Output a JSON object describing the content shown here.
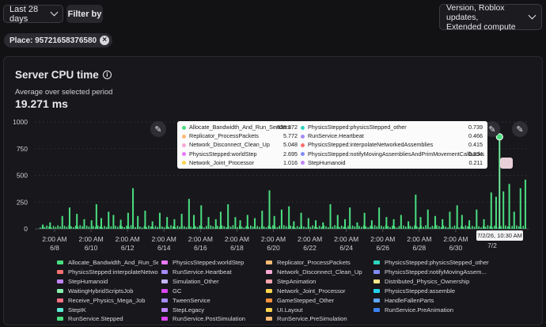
{
  "toolbar": {
    "date_range": "Last 28 days",
    "filter_label": "Filter by",
    "breakdown_line1": "Version, Roblox updates,",
    "breakdown_line2": "Extended compute"
  },
  "filter_chip": {
    "label": "Place: 95721658376580"
  },
  "panel": {
    "title": "Server CPU time",
    "avg_label": "Average over selected period",
    "avg_value": "19.271 ms"
  },
  "colors": {
    "accent": "#4ade80",
    "background": "#121215"
  },
  "icons": [
    "chevron-down-icon",
    "close-icon",
    "info-icon",
    "pencil-icon"
  ],
  "chart_data": {
    "type": "bar",
    "y_ticks": [
      "1000",
      "750",
      "500",
      "250",
      "0"
    ],
    "ylim": [
      0,
      1000
    ],
    "x_ticks": [
      {
        "time": "2:00 AM",
        "date": "6/8"
      },
      {
        "time": "2:00 AM",
        "date": "6/10"
      },
      {
        "time": "2:00 AM",
        "date": "6/12"
      },
      {
        "time": "2:00 AM",
        "date": "6/14"
      },
      {
        "time": "2:00 AM",
        "date": "6/16"
      },
      {
        "time": "2:00 AM",
        "date": "6/18"
      },
      {
        "time": "2:00 AM",
        "date": "6/20"
      },
      {
        "time": "2:00 AM",
        "date": "6/22"
      },
      {
        "time": "2:00 AM",
        "date": "6/24"
      },
      {
        "time": "2:00 AM",
        "date": "6/26"
      },
      {
        "time": "2:00 AM",
        "date": "6/28"
      },
      {
        "time": "2:00 AM",
        "date": "6/30"
      },
      {
        "time": "",
        "date": "7/2"
      }
    ],
    "peaks": [
      {
        "x": 0.005,
        "v": 40
      },
      {
        "x": 0.02,
        "v": 60
      },
      {
        "x": 0.045,
        "v": 120
      },
      {
        "x": 0.06,
        "v": 200
      },
      {
        "x": 0.075,
        "v": 140
      },
      {
        "x": 0.09,
        "v": 90
      },
      {
        "x": 0.105,
        "v": 80
      },
      {
        "x": 0.115,
        "v": 230
      },
      {
        "x": 0.125,
        "v": 100
      },
      {
        "x": 0.14,
        "v": 160
      },
      {
        "x": 0.15,
        "v": 130
      },
      {
        "x": 0.165,
        "v": 85
      },
      {
        "x": 0.18,
        "v": 150
      },
      {
        "x": 0.19,
        "v": 380
      },
      {
        "x": 0.2,
        "v": 120
      },
      {
        "x": 0.215,
        "v": 170
      },
      {
        "x": 0.23,
        "v": 70
      },
      {
        "x": 0.245,
        "v": 150
      },
      {
        "x": 0.26,
        "v": 110
      },
      {
        "x": 0.275,
        "v": 90
      },
      {
        "x": 0.29,
        "v": 140
      },
      {
        "x": 0.305,
        "v": 280
      },
      {
        "x": 0.315,
        "v": 130
      },
      {
        "x": 0.33,
        "v": 220
      },
      {
        "x": 0.345,
        "v": 110
      },
      {
        "x": 0.36,
        "v": 90
      },
      {
        "x": 0.37,
        "v": 160
      },
      {
        "x": 0.385,
        "v": 230
      },
      {
        "x": 0.4,
        "v": 110
      },
      {
        "x": 0.41,
        "v": 80
      },
      {
        "x": 0.425,
        "v": 130
      },
      {
        "x": 0.44,
        "v": 100
      },
      {
        "x": 0.455,
        "v": 170
      },
      {
        "x": 0.47,
        "v": 360
      },
      {
        "x": 0.48,
        "v": 120
      },
      {
        "x": 0.495,
        "v": 180
      },
      {
        "x": 0.51,
        "v": 210
      },
      {
        "x": 0.52,
        "v": 70
      },
      {
        "x": 0.535,
        "v": 150
      },
      {
        "x": 0.55,
        "v": 100
      },
      {
        "x": 0.565,
        "v": 80
      },
      {
        "x": 0.58,
        "v": 60
      },
      {
        "x": 0.595,
        "v": 230
      },
      {
        "x": 0.61,
        "v": 130
      },
      {
        "x": 0.625,
        "v": 90
      },
      {
        "x": 0.635,
        "v": 200
      },
      {
        "x": 0.65,
        "v": 60
      },
      {
        "x": 0.665,
        "v": 150
      },
      {
        "x": 0.68,
        "v": 80
      },
      {
        "x": 0.695,
        "v": 200
      },
      {
        "x": 0.71,
        "v": 110
      },
      {
        "x": 0.725,
        "v": 90
      },
      {
        "x": 0.74,
        "v": 130
      },
      {
        "x": 0.755,
        "v": 70
      },
      {
        "x": 0.77,
        "v": 320
      },
      {
        "x": 0.78,
        "v": 110
      },
      {
        "x": 0.795,
        "v": 180
      },
      {
        "x": 0.81,
        "v": 120
      },
      {
        "x": 0.825,
        "v": 90
      },
      {
        "x": 0.84,
        "v": 160
      },
      {
        "x": 0.855,
        "v": 220
      },
      {
        "x": 0.865,
        "v": 130
      },
      {
        "x": 0.88,
        "v": 80
      },
      {
        "x": 0.895,
        "v": 180
      },
      {
        "x": 0.91,
        "v": 90
      },
      {
        "x": 0.925,
        "v": 340
      },
      {
        "x": 0.935,
        "v": 300
      },
      {
        "x": 0.942,
        "v": 860
      },
      {
        "x": 0.95,
        "v": 350
      },
      {
        "x": 0.962,
        "v": 420
      },
      {
        "x": 0.972,
        "v": 160
      },
      {
        "x": 0.985,
        "v": 380
      },
      {
        "x": 0.995,
        "v": 460
      }
    ],
    "highlight": {
      "x": 0.942,
      "v": 860,
      "label": "7/2/26, 10:30 AM"
    },
    "tooltip": [
      {
        "name": "Allocate_Bandwidth_And_Run_Senders",
        "value": "838.372",
        "color": "#4ade80"
      },
      {
        "name": "PhysicsStepped:physicsStepped_other",
        "value": "0.739",
        "color": "#2dd4bf"
      },
      {
        "name": "Replicator_ProcessPackets",
        "value": "5.772",
        "color": "#fdba74"
      },
      {
        "name": "RunService.Heartbeat",
        "value": "0.466",
        "color": "#a78bfa"
      },
      {
        "name": "Network_Disconnect_Clean_Up",
        "value": "5.048",
        "color": "#f9a8d4"
      },
      {
        "name": "PhysicsStepped:interpolateNetworkedAssemblies",
        "value": "0.415",
        "color": "#f87171"
      },
      {
        "name": "PhysicsStepped:worldStep",
        "value": "2.695",
        "color": "#e879f9"
      },
      {
        "name": "PhysicsStepped:notifyMovingAssembliesAndPrimMovementCallbacks",
        "value": "0.234",
        "color": "#818cf8"
      },
      {
        "name": "Network_Joint_Processor",
        "value": "1.016",
        "color": "#fcd34d"
      },
      {
        "name": "StepHumanoid",
        "value": "0.211",
        "color": "#c084fc"
      }
    ],
    "legend": [
      {
        "name": "Allocate_Bandwidth_And_Run_Senders",
        "color": "#4ade80"
      },
      {
        "name": "PhysicsStepped:worldStep",
        "color": "#e879f9"
      },
      {
        "name": "Replicator_ProcessPackets",
        "color": "#fdba74"
      },
      {
        "name": "PhysicsStepped:physicsStepped_other",
        "color": "#2dd4bf"
      },
      {
        "name": "PhysicsStepped:interpolateNetworke...",
        "color": "#f87171"
      },
      {
        "name": "RunService.Heartbeat",
        "color": "#a78bfa"
      },
      {
        "name": "Network_Disconnect_Clean_Up",
        "color": "#f9a8d4"
      },
      {
        "name": "PhysicsStepped:notifyMovingAssem...",
        "color": "#818cf8"
      },
      {
        "name": "StepHumanoid",
        "color": "#c084fc"
      },
      {
        "name": "Simulation_Other",
        "color": "#c4b5fd"
      },
      {
        "name": "StepAnimation",
        "color": "#fda4af"
      },
      {
        "name": "Distributed_Physics_Ownership",
        "color": "#fde68a"
      },
      {
        "name": "WaitingHybridScriptsJob",
        "color": "#86efac"
      },
      {
        "name": "GC",
        "color": "#d946ef"
      },
      {
        "name": "Network_Joint_Processor",
        "color": "#fcd34d"
      },
      {
        "name": "PhysicsStepped:assemble",
        "color": "#22d3ee"
      },
      {
        "name": "Receive_Physics_Mega_Job",
        "color": "#fb7185"
      },
      {
        "name": "TweenService",
        "color": "#a78bfa"
      },
      {
        "name": "GameStepped_Other",
        "color": "#fb923c"
      },
      {
        "name": "HandleFallenParts",
        "color": "#60a5fa"
      },
      {
        "name": "StepIK",
        "color": "#5eead4"
      },
      {
        "name": "StepLegacy",
        "color": "#c084fc"
      },
      {
        "name": "UI.Layout",
        "color": "#fcd34d"
      },
      {
        "name": "RunService.PreAnimation",
        "color": "#3b82f6"
      },
      {
        "name": "RunService.Stepped",
        "color": "#4ade80"
      },
      {
        "name": "RunService.PostSimulation",
        "color": "#d946ef"
      },
      {
        "name": "RunService.PreSimulation",
        "color": "#fdba74"
      }
    ]
  }
}
